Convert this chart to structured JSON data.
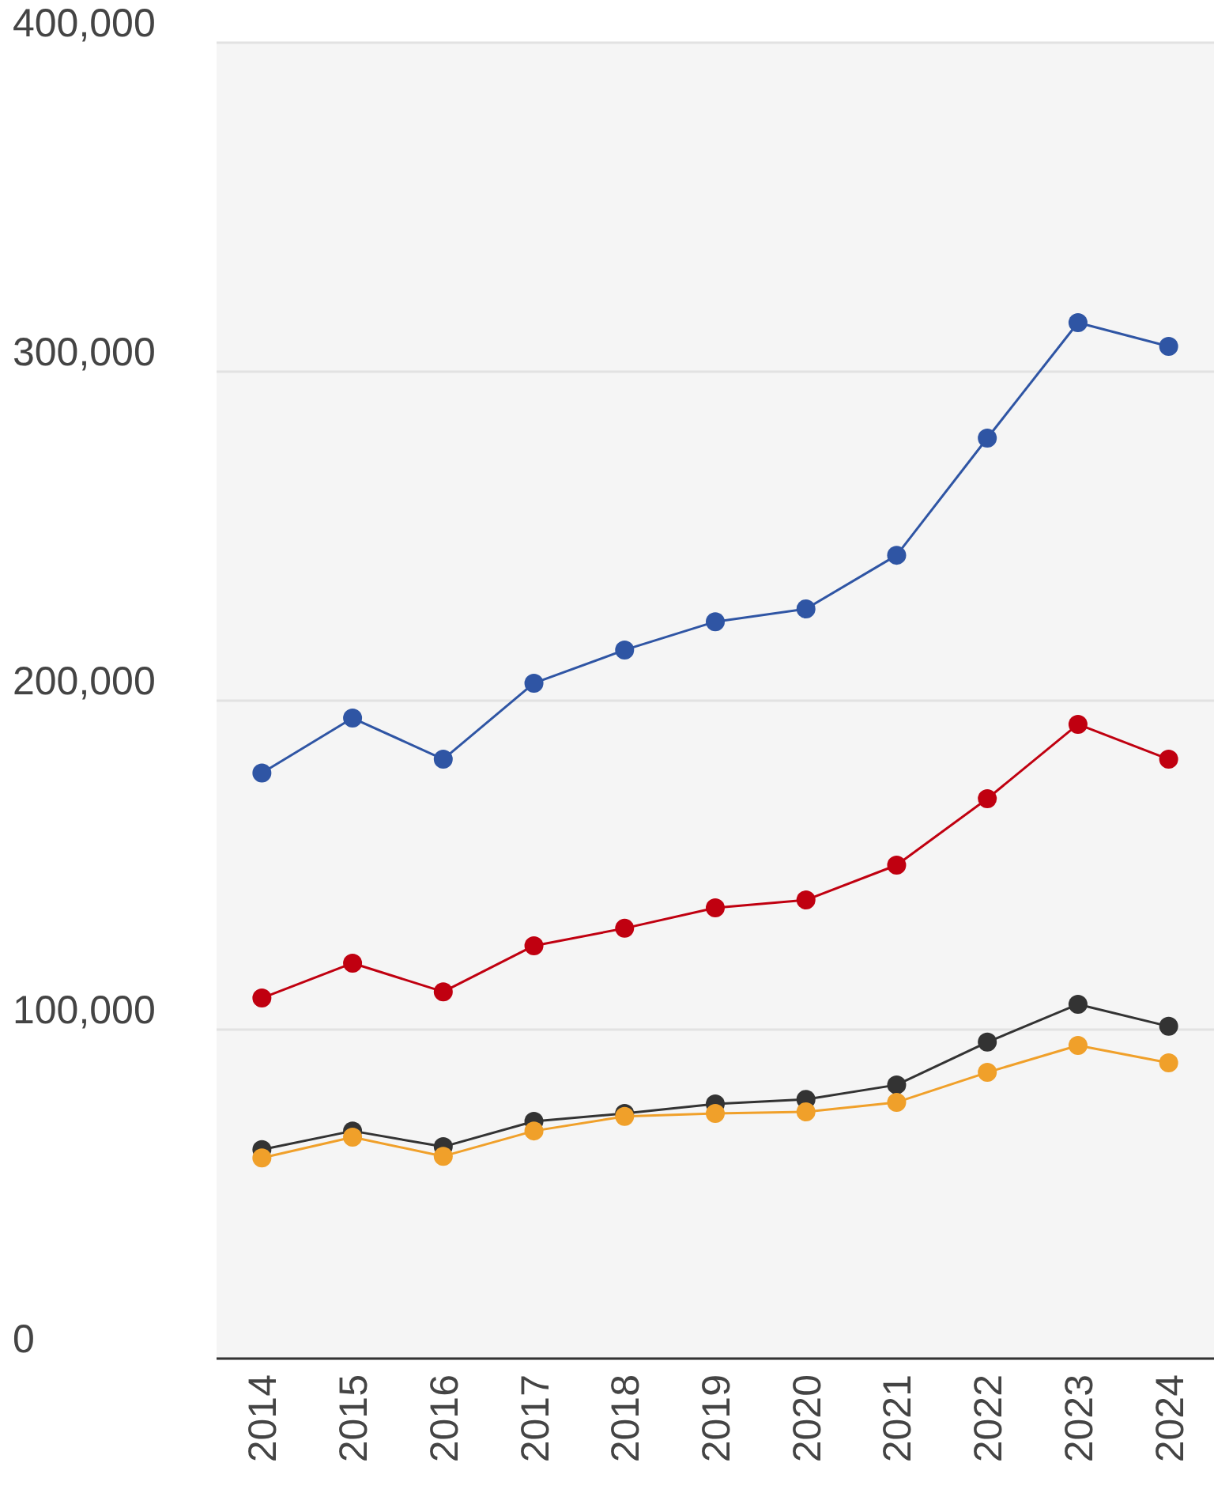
{
  "chart_data": {
    "type": "line",
    "categories": [
      "2014",
      "2015",
      "2016",
      "2017",
      "2018",
      "2019",
      "2020",
      "2021",
      "2022",
      "2023",
      "2024"
    ],
    "series": [
      {
        "color": "#2f55a4",
        "values": [
          178000,
          194700,
          182200,
          205300,
          215400,
          224000,
          227900,
          244200,
          279800,
          314900,
          307700
        ]
      },
      {
        "color": "#c00010",
        "values": [
          109600,
          120200,
          111500,
          125500,
          130800,
          137000,
          139400,
          150000,
          170200,
          192800,
          182200
        ]
      },
      {
        "color": "#333333",
        "values": [
          63500,
          69200,
          64400,
          72100,
          74500,
          77400,
          78800,
          83200,
          96200,
          107700,
          101000
        ]
      },
      {
        "color": "#f0a02a",
        "values": [
          61000,
          67300,
          61500,
          69200,
          73600,
          74500,
          75000,
          77900,
          87000,
          95200,
          89900
        ]
      }
    ],
    "ylim": [
      0,
      400000
    ],
    "yticks": [
      {
        "value": 0,
        "label": "0"
      },
      {
        "value": 100000,
        "label": "100,000"
      },
      {
        "value": 200000,
        "label": "200,000"
      },
      {
        "value": 300000,
        "label": "300,000"
      },
      {
        "value": 400000,
        "label": "400,000"
      }
    ],
    "grid": "y",
    "marker": "circle",
    "line_style": "solid"
  }
}
